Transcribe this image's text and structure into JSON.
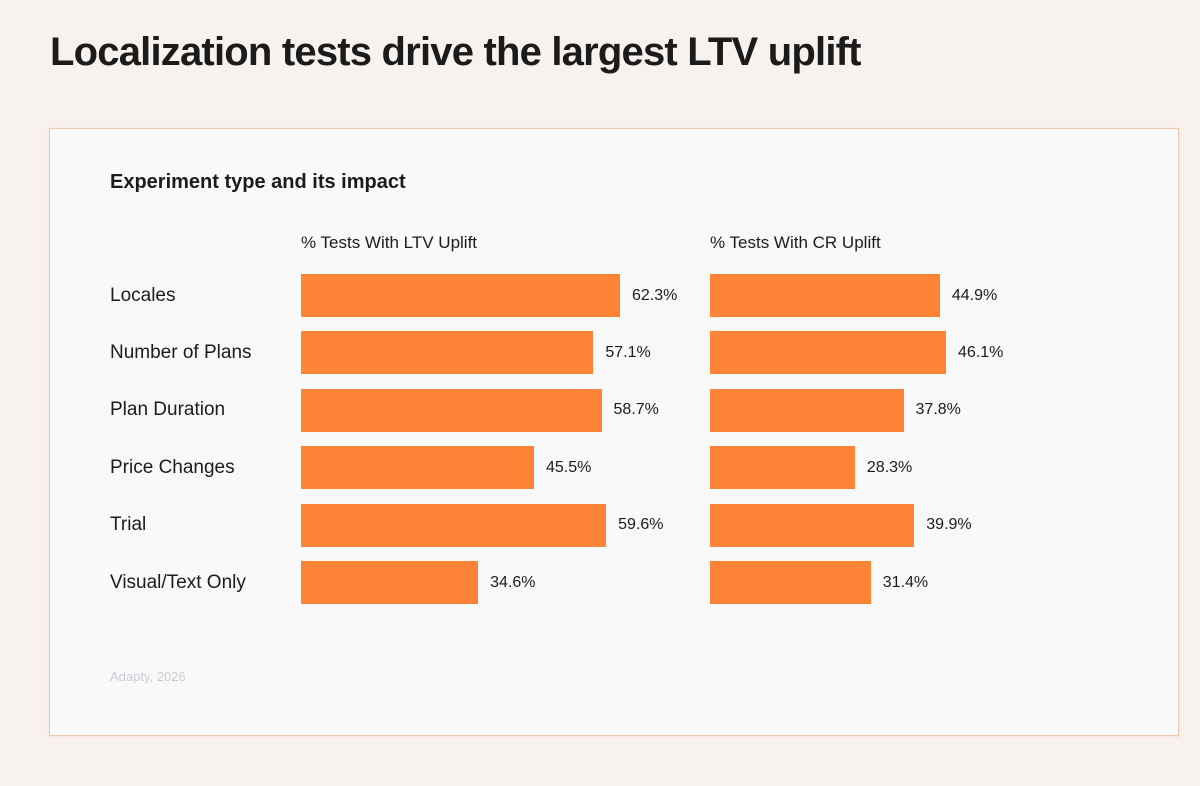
{
  "title": "Localization tests drive the largest LTV uplift",
  "source": "Adapty, 2026",
  "colors": {
    "bar": "#fd8437",
    "page_bg": "#f8f2ef",
    "card_bg": "#f9f9f9",
    "card_border": "#f3c8ad"
  },
  "chart_data": {
    "type": "bar",
    "orientation": "horizontal",
    "title": "Experiment type and its impact",
    "categories": [
      "Locales",
      "Number of Plans",
      "Plan Duration",
      "Price Changes",
      "Trial",
      "Visual/Text Only"
    ],
    "series": [
      {
        "name": "% Tests With LTV Uplift",
        "values": [
          62.3,
          57.1,
          58.7,
          45.5,
          59.6,
          34.6
        ]
      },
      {
        "name": "% Tests With CR Uplift",
        "values": [
          44.9,
          46.1,
          37.8,
          28.3,
          39.9,
          31.4
        ]
      }
    ],
    "value_suffix": "%",
    "grid": false,
    "legend": "none"
  }
}
